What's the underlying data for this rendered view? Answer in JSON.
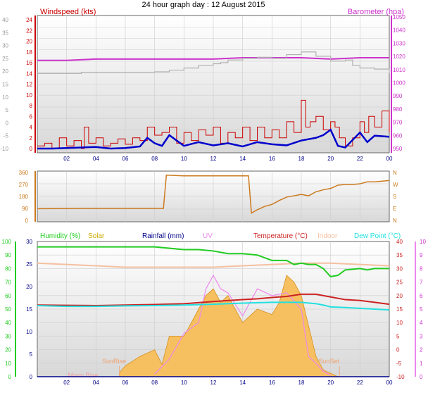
{
  "title": "24 hour graph day : 12 August 2015",
  "colors": {
    "windspeed": "#cc0000",
    "wind_avg": "#0000cc",
    "barometer": "#cc33cc",
    "baro_gray": "#b0b0b0",
    "direction": "#cc7a1e",
    "humidity": "#22cc22",
    "solar": "#ccaa00",
    "rainfall": "#000088",
    "uv": "#ee88ee",
    "temperature": "#cc2222",
    "indoor": "#f5c0a0",
    "dewpoint": "#22e0e0",
    "solar_fill": "#f6c060"
  },
  "chart_data": [
    {
      "type": "line",
      "panel": "wind-barometer",
      "title": "",
      "left_axis_label": "Windspeed (kts)",
      "right_axis_label": "Barometer (hpa)",
      "x_ticks": [
        "02",
        "04",
        "06",
        "08",
        "10",
        "12",
        "14",
        "16",
        "18",
        "20",
        "22",
        "00"
      ],
      "x_range": [
        0,
        24
      ],
      "left_outer_ticks": [
        "40",
        "35",
        "30",
        "25",
        "20",
        "15",
        "10",
        "5",
        "0",
        "-5",
        "-10"
      ],
      "left_inner_ticks": [
        "24",
        "22",
        "20",
        "18",
        "16",
        "14",
        "12",
        "10",
        "8",
        "6",
        "4",
        "2",
        "0"
      ],
      "ylim_left": [
        0,
        24
      ],
      "right_ticks": [
        "1050",
        "1040",
        "1030",
        "1020",
        "1010",
        "1000",
        "990",
        "980",
        "970",
        "960",
        "950"
      ],
      "ylim_right": [
        950,
        1050
      ],
      "series": [
        {
          "name": "Barometer (hpa)",
          "color_key": "barometer",
          "x": [
            0,
            2,
            4,
            6,
            8,
            10,
            12,
            14,
            16,
            18,
            20,
            22,
            24
          ],
          "y": [
            1017,
            1017,
            1018,
            1018,
            1018,
            1018,
            1018,
            1019,
            1019,
            1019,
            1018,
            1019,
            1019
          ]
        },
        {
          "name": "",
          "color_key": "baro_gray",
          "x": [
            0,
            2,
            3,
            4,
            6,
            8,
            9,
            10,
            11,
            12,
            12.5,
            13,
            14,
            15,
            16,
            17,
            18,
            19,
            20,
            21,
            21.5,
            22,
            23,
            24
          ],
          "y": [
            14,
            14,
            14.2,
            14.2,
            14.2,
            14.3,
            14.6,
            15,
            15.5,
            15.8,
            16,
            16.5,
            16.8,
            17,
            16.8,
            17.5,
            18,
            17.2,
            16.3,
            16.5,
            15.5,
            15,
            14.8,
            14
          ]
        },
        {
          "name": "",
          "color_key": "wind_avg",
          "x": [
            0,
            1,
            2,
            3,
            4,
            5,
            6,
            7,
            7.5,
            8,
            8.5,
            9,
            10,
            11,
            12,
            13,
            14,
            15,
            16,
            17,
            18,
            19,
            19.5,
            20,
            20.5,
            21,
            22,
            22.5,
            23,
            24
          ],
          "y": [
            0,
            0,
            0.1,
            0.2,
            0.3,
            0,
            0.1,
            0.4,
            2,
            1,
            0.5,
            2.5,
            0.5,
            1.2,
            0.6,
            1,
            0.4,
            1.2,
            0.8,
            0.6,
            1.5,
            2,
            2.5,
            3.5,
            0.5,
            0.2,
            3,
            1.2,
            2.4,
            2.2
          ]
        },
        {
          "name": "Windspeed (kts)",
          "color_key": "windspeed",
          "x": [
            0,
            0.5,
            1,
            1.5,
            2,
            2.5,
            3,
            3.2,
            3.5,
            4,
            4.5,
            5,
            5.5,
            6,
            6.5,
            7,
            7.5,
            8,
            8.5,
            9,
            9.5,
            10,
            10.5,
            11,
            11.5,
            12,
            12.5,
            13,
            13.5,
            14,
            14.5,
            15,
            15.5,
            16,
            16.5,
            17,
            17.5,
            18,
            18.3,
            18.6,
            19,
            19.5,
            20,
            20.3,
            20.6,
            21,
            21.5,
            22,
            22.3,
            22.6,
            23,
            23.5,
            24
          ],
          "y": [
            0.5,
            1,
            0,
            2,
            0.5,
            1.5,
            0,
            4,
            1,
            2,
            0.5,
            1,
            1.8,
            0.8,
            2,
            1.5,
            4,
            2.5,
            3,
            4,
            1,
            3,
            1.5,
            3.5,
            2.5,
            4,
            1,
            3,
            2,
            4,
            1.5,
            4,
            2,
            3.5,
            2,
            5,
            3,
            9,
            4,
            5,
            6,
            3.5,
            5,
            4,
            2,
            0.5,
            2,
            5,
            3,
            6,
            4,
            7,
            3
          ]
        }
      ]
    },
    {
      "type": "line",
      "panel": "direction",
      "title": "",
      "left_ticks": [
        "360",
        "270",
        "180",
        "90",
        "0"
      ],
      "ylim": [
        0,
        360
      ],
      "right_ticks": [
        "N",
        "W",
        "S",
        "E",
        "N"
      ],
      "series": [
        {
          "name": "",
          "color_key": "direction",
          "x": [
            0,
            3,
            6,
            8.6,
            8.8,
            10,
            12,
            14.4,
            14.6,
            15,
            15.5,
            16,
            16.5,
            17,
            17.5,
            18,
            18.5,
            19,
            19.5,
            20,
            20.5,
            21,
            21.5,
            22,
            22.5,
            23,
            24
          ],
          "y": [
            88,
            90,
            90,
            90,
            340,
            335,
            335,
            335,
            55,
            80,
            105,
            120,
            150,
            175,
            185,
            195,
            185,
            215,
            230,
            240,
            265,
            270,
            270,
            275,
            290,
            290,
            300
          ]
        }
      ]
    },
    {
      "type": "line",
      "panel": "temperature-humidity",
      "title": "",
      "legend": [
        "Humidity (%)",
        "Solar",
        "Rainfall (mm)",
        "UV",
        "Temperature (°C)",
        "Indoor",
        "Dew Point (°C)"
      ],
      "left_outer_ticks": [
        "100",
        "90",
        "80",
        "70",
        "60",
        "50",
        "40",
        "30",
        "20",
        "10",
        "0"
      ],
      "left_inner_ticks": [
        "30",
        "25",
        "20",
        "15",
        "10",
        "5",
        "0"
      ],
      "right_inner_ticks": [
        "40",
        "35",
        "30",
        "25",
        "20",
        "15",
        "10",
        "5",
        "0",
        "-5",
        "-10"
      ],
      "right_outer_ticks": [
        "10",
        "9",
        "8",
        "7",
        "6",
        "5",
        "4",
        "3",
        "2",
        "1",
        "0"
      ],
      "ylim_temp": [
        -10,
        40
      ],
      "annotations": [
        "SunRise",
        "SunSet",
        "Moon Rise"
      ],
      "series": [
        {
          "name": "Humidity (%)",
          "color_key": "humidity",
          "x": [
            0,
            2,
            4,
            6,
            8,
            10,
            11,
            12,
            13,
            14,
            15,
            16,
            17,
            17.5,
            18,
            18.5,
            19,
            19.5,
            20,
            20.5,
            21,
            22,
            22.5,
            23,
            23.5,
            24
          ],
          "y": [
            96,
            96,
            96,
            96,
            96,
            94,
            94,
            93,
            91,
            91,
            90,
            86,
            86,
            83,
            84,
            83,
            83,
            80,
            74,
            75,
            79,
            80,
            79,
            80,
            80,
            80
          ]
        },
        {
          "name": "Indoor",
          "color_key": "indoor",
          "x": [
            0,
            2,
            4,
            6,
            8,
            10,
            12,
            14,
            16,
            18,
            20,
            22,
            24
          ],
          "y": [
            84,
            83,
            82,
            81,
            81,
            81,
            81,
            82,
            83,
            84,
            84,
            83,
            82
          ]
        },
        {
          "name": "Temperature (°C)",
          "color_key": "temperature",
          "x": [
            0,
            2,
            4,
            6,
            8,
            10,
            12,
            14,
            15,
            16,
            17,
            18,
            19,
            20,
            21,
            22,
            23,
            24
          ],
          "y": [
            16.5,
            16.4,
            16.3,
            16.5,
            16.7,
            17,
            17.8,
            18.5,
            18.8,
            19.3,
            19.7,
            20.5,
            20.5,
            19.5,
            18.5,
            18.2,
            17.5,
            16.8
          ]
        },
        {
          "name": "Dew Point (°C)",
          "color_key": "dewpoint",
          "x": [
            0,
            2,
            4,
            6,
            8,
            10,
            12,
            14,
            16,
            17,
            18,
            19,
            19.5,
            20,
            21,
            22,
            23,
            24
          ],
          "y": [
            16.3,
            16,
            16,
            16.2,
            16.3,
            16.5,
            16.8,
            17.2,
            17.5,
            17.5,
            17.5,
            17,
            16.5,
            15.8,
            15.6,
            15.3,
            15,
            14.7
          ]
        },
        {
          "name": "Solar",
          "color_key": "solar_fill",
          "x": [
            5.6,
            6,
            7,
            8,
            8.5,
            9,
            10,
            11,
            11.5,
            12,
            12.5,
            13,
            14,
            15,
            16,
            16.5,
            17,
            17.5,
            18,
            19,
            19.5,
            20.5
          ],
          "y": [
            0.3,
            0.8,
            1.5,
            2,
            0.9,
            3,
            3,
            5,
            6,
            6.5,
            5.5,
            6,
            4,
            5,
            4.6,
            5.5,
            7.5,
            7,
            6,
            1.5,
            0.5,
            0
          ]
        },
        {
          "name": "UV",
          "color_key": "uv",
          "x": [
            8,
            9,
            10,
            11,
            11.5,
            12,
            12.5,
            13,
            14,
            15,
            16,
            17,
            18,
            18.5,
            19,
            19.5,
            20
          ],
          "y": [
            0.2,
            1.3,
            3.2,
            4,
            6.5,
            7.5,
            6.5,
            6.2,
            4.5,
            6.5,
            6,
            6.2,
            5,
            1.5,
            1,
            0.4,
            0.1
          ]
        },
        {
          "name": "Rainfall (mm)",
          "color_key": "rainfall",
          "x": [
            0,
            24
          ],
          "y": [
            0,
            0
          ]
        }
      ]
    }
  ]
}
